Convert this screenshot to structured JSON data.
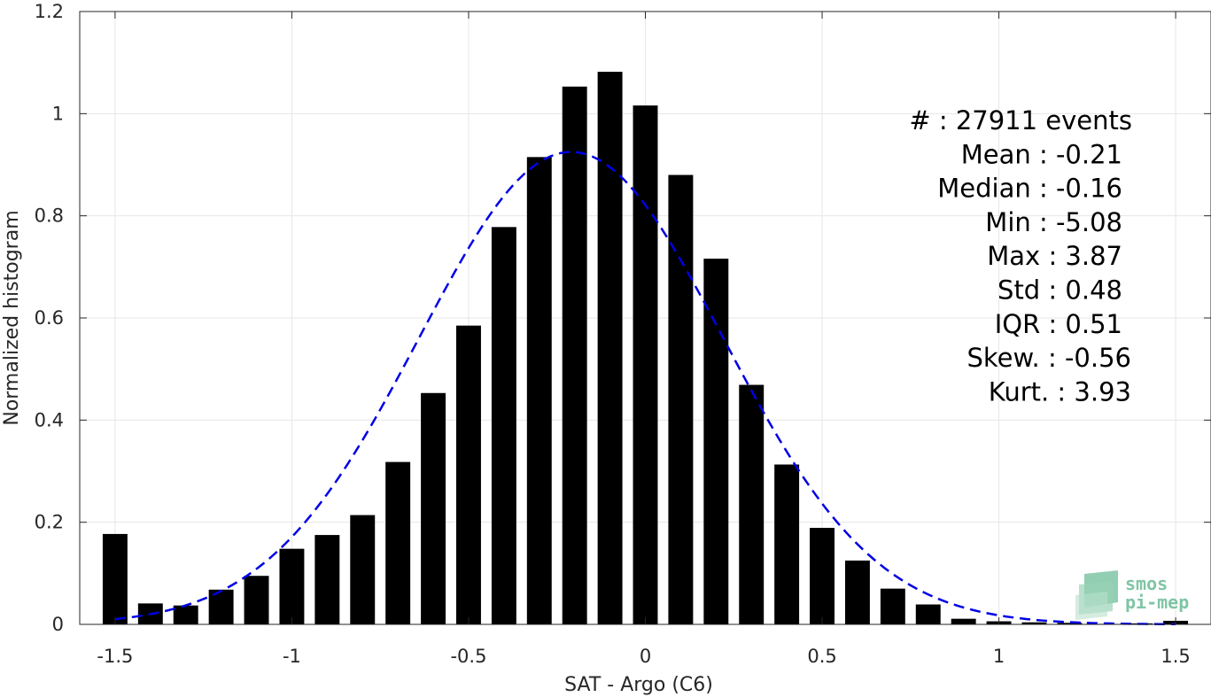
{
  "chart_data": {
    "type": "bar",
    "xlabel": "SAT - Argo (C6)",
    "ylabel": "Normalized histogram",
    "xlim": [
      -1.6,
      1.6
    ],
    "ylim": [
      0,
      1.2
    ],
    "x_ticks": [
      -1.5,
      -1,
      -0.5,
      0,
      0.5,
      1,
      1.5
    ],
    "x_tick_labels": [
      "-1.5",
      "-1",
      "-0.5",
      "0",
      "0.5",
      "1",
      "1.5"
    ],
    "y_ticks": [
      0,
      0.2,
      0.4,
      0.6,
      0.8,
      1,
      1.2
    ],
    "y_tick_labels": [
      "0",
      "0.2",
      "0.4",
      "0.6",
      "0.8",
      "1",
      "1.2"
    ],
    "grid": true,
    "bar_width": 0.07,
    "bar_color": "#000000",
    "x": [
      -1.5,
      -1.4,
      -1.3,
      -1.2,
      -1.1,
      -1.0,
      -0.9,
      -0.8,
      -0.7,
      -0.6,
      -0.5,
      -0.4,
      -0.3,
      -0.2,
      -0.1,
      0.0,
      0.1,
      0.2,
      0.3,
      0.4,
      0.5,
      0.6,
      0.7,
      0.8,
      0.9,
      1.0,
      1.1,
      1.2,
      1.3,
      1.4,
      1.5
    ],
    "values": [
      0.177,
      0.041,
      0.037,
      0.068,
      0.095,
      0.148,
      0.175,
      0.214,
      0.318,
      0.453,
      0.585,
      0.778,
      0.915,
      1.053,
      1.082,
      1.016,
      0.88,
      0.716,
      0.469,
      0.313,
      0.189,
      0.125,
      0.07,
      0.039,
      0.011,
      0.006,
      0.004,
      0.003,
      0.001,
      0.002,
      0.007
    ],
    "fit_curve": {
      "style": "dashed",
      "color": "#0000e6",
      "mean": -0.21,
      "std": 0.43,
      "peak": 0.925,
      "x_range": [
        -1.5,
        1.5
      ]
    }
  },
  "stats": [
    "#  : 27911 events",
    "Mean : -0.21",
    "Median : -0.16",
    "Min : -5.08",
    "Max : 3.87",
    "Std : 0.48",
    "IQR : 0.51",
    "Skew. : -0.56",
    "Kurt. : 3.93"
  ],
  "logo": {
    "line1": "smos",
    "line2": "pi-mep",
    "color": "#7fc5a4"
  }
}
